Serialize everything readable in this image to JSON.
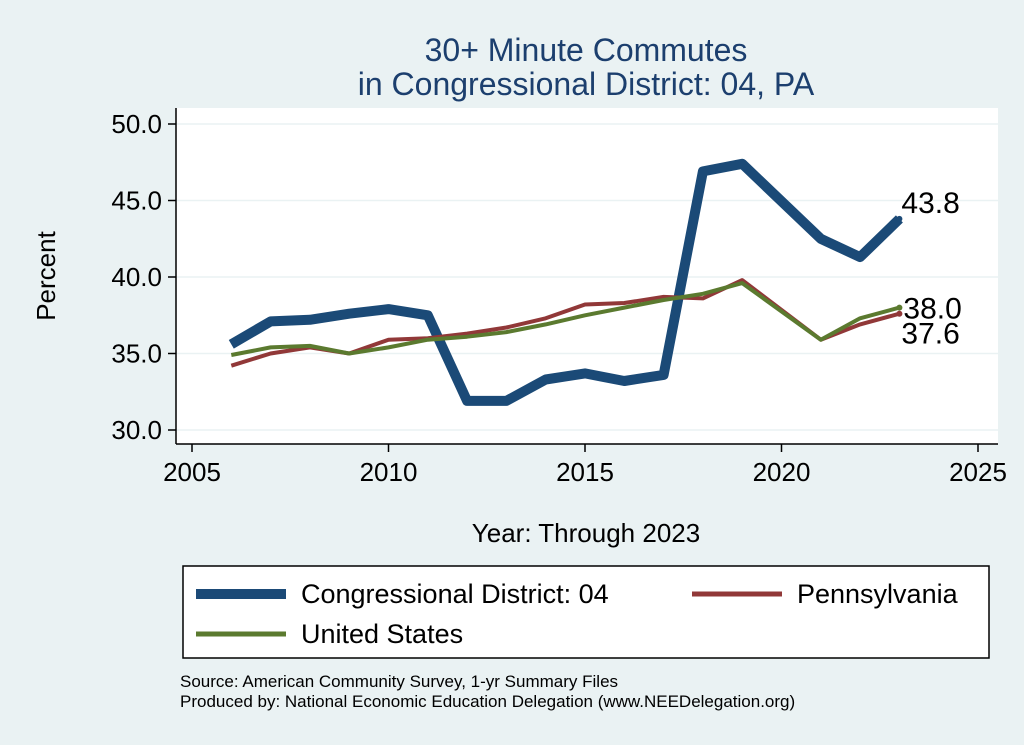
{
  "chart_data": {
    "type": "line",
    "title": [
      "30+ Minute Commutes",
      "in Congressional District:  04, PA"
    ],
    "xlabel": "Year: Through 2023",
    "ylabel": "Percent",
    "xlim": [
      2005,
      2025
    ],
    "ylim": [
      29.5,
      50.5
    ],
    "xticks": [
      2005,
      2010,
      2015,
      2020,
      2025
    ],
    "yticks": [
      30,
      35,
      40,
      45,
      50
    ],
    "ytick_labels": [
      "30.0",
      "35.0",
      "40.0",
      "45.0",
      "50.0"
    ],
    "x": [
      2006,
      2007,
      2008,
      2009,
      2010,
      2011,
      2012,
      2013,
      2014,
      2015,
      2016,
      2017,
      2018,
      2019,
      2021,
      2022,
      2023
    ],
    "series": [
      {
        "name": "Congressional District:  04",
        "color": "#1b4a77",
        "end_label": "43.8",
        "values": [
          35.6,
          37.1,
          37.2,
          37.6,
          37.9,
          37.5,
          31.9,
          31.9,
          33.3,
          33.7,
          33.2,
          33.6,
          46.9,
          47.4,
          42.5,
          41.3,
          43.8
        ]
      },
      {
        "name": "Pennsylvania",
        "color": "#913838",
        "end_label": "37.6",
        "values": [
          34.2,
          35.0,
          35.4,
          35.0,
          35.9,
          36.0,
          36.3,
          36.7,
          37.3,
          38.2,
          38.3,
          38.7,
          38.6,
          39.8,
          35.9,
          36.9,
          37.6
        ]
      },
      {
        "name": "United States",
        "color": "#5b7a2f",
        "end_label": "38.0",
        "values": [
          34.9,
          35.4,
          35.5,
          35.0,
          35.4,
          35.9,
          36.1,
          36.4,
          36.9,
          37.5,
          38.0,
          38.5,
          38.9,
          39.6,
          35.9,
          37.3,
          38.0
        ]
      }
    ],
    "legend": [
      "Congressional District:  04",
      "Pennsylvania",
      "United States"
    ]
  },
  "source": {
    "line1": "Source: American Community Survey, 1-yr Summary Files",
    "line2": "Produced by: National Economic Education Delegation (www.NEEDelegation.org)"
  }
}
